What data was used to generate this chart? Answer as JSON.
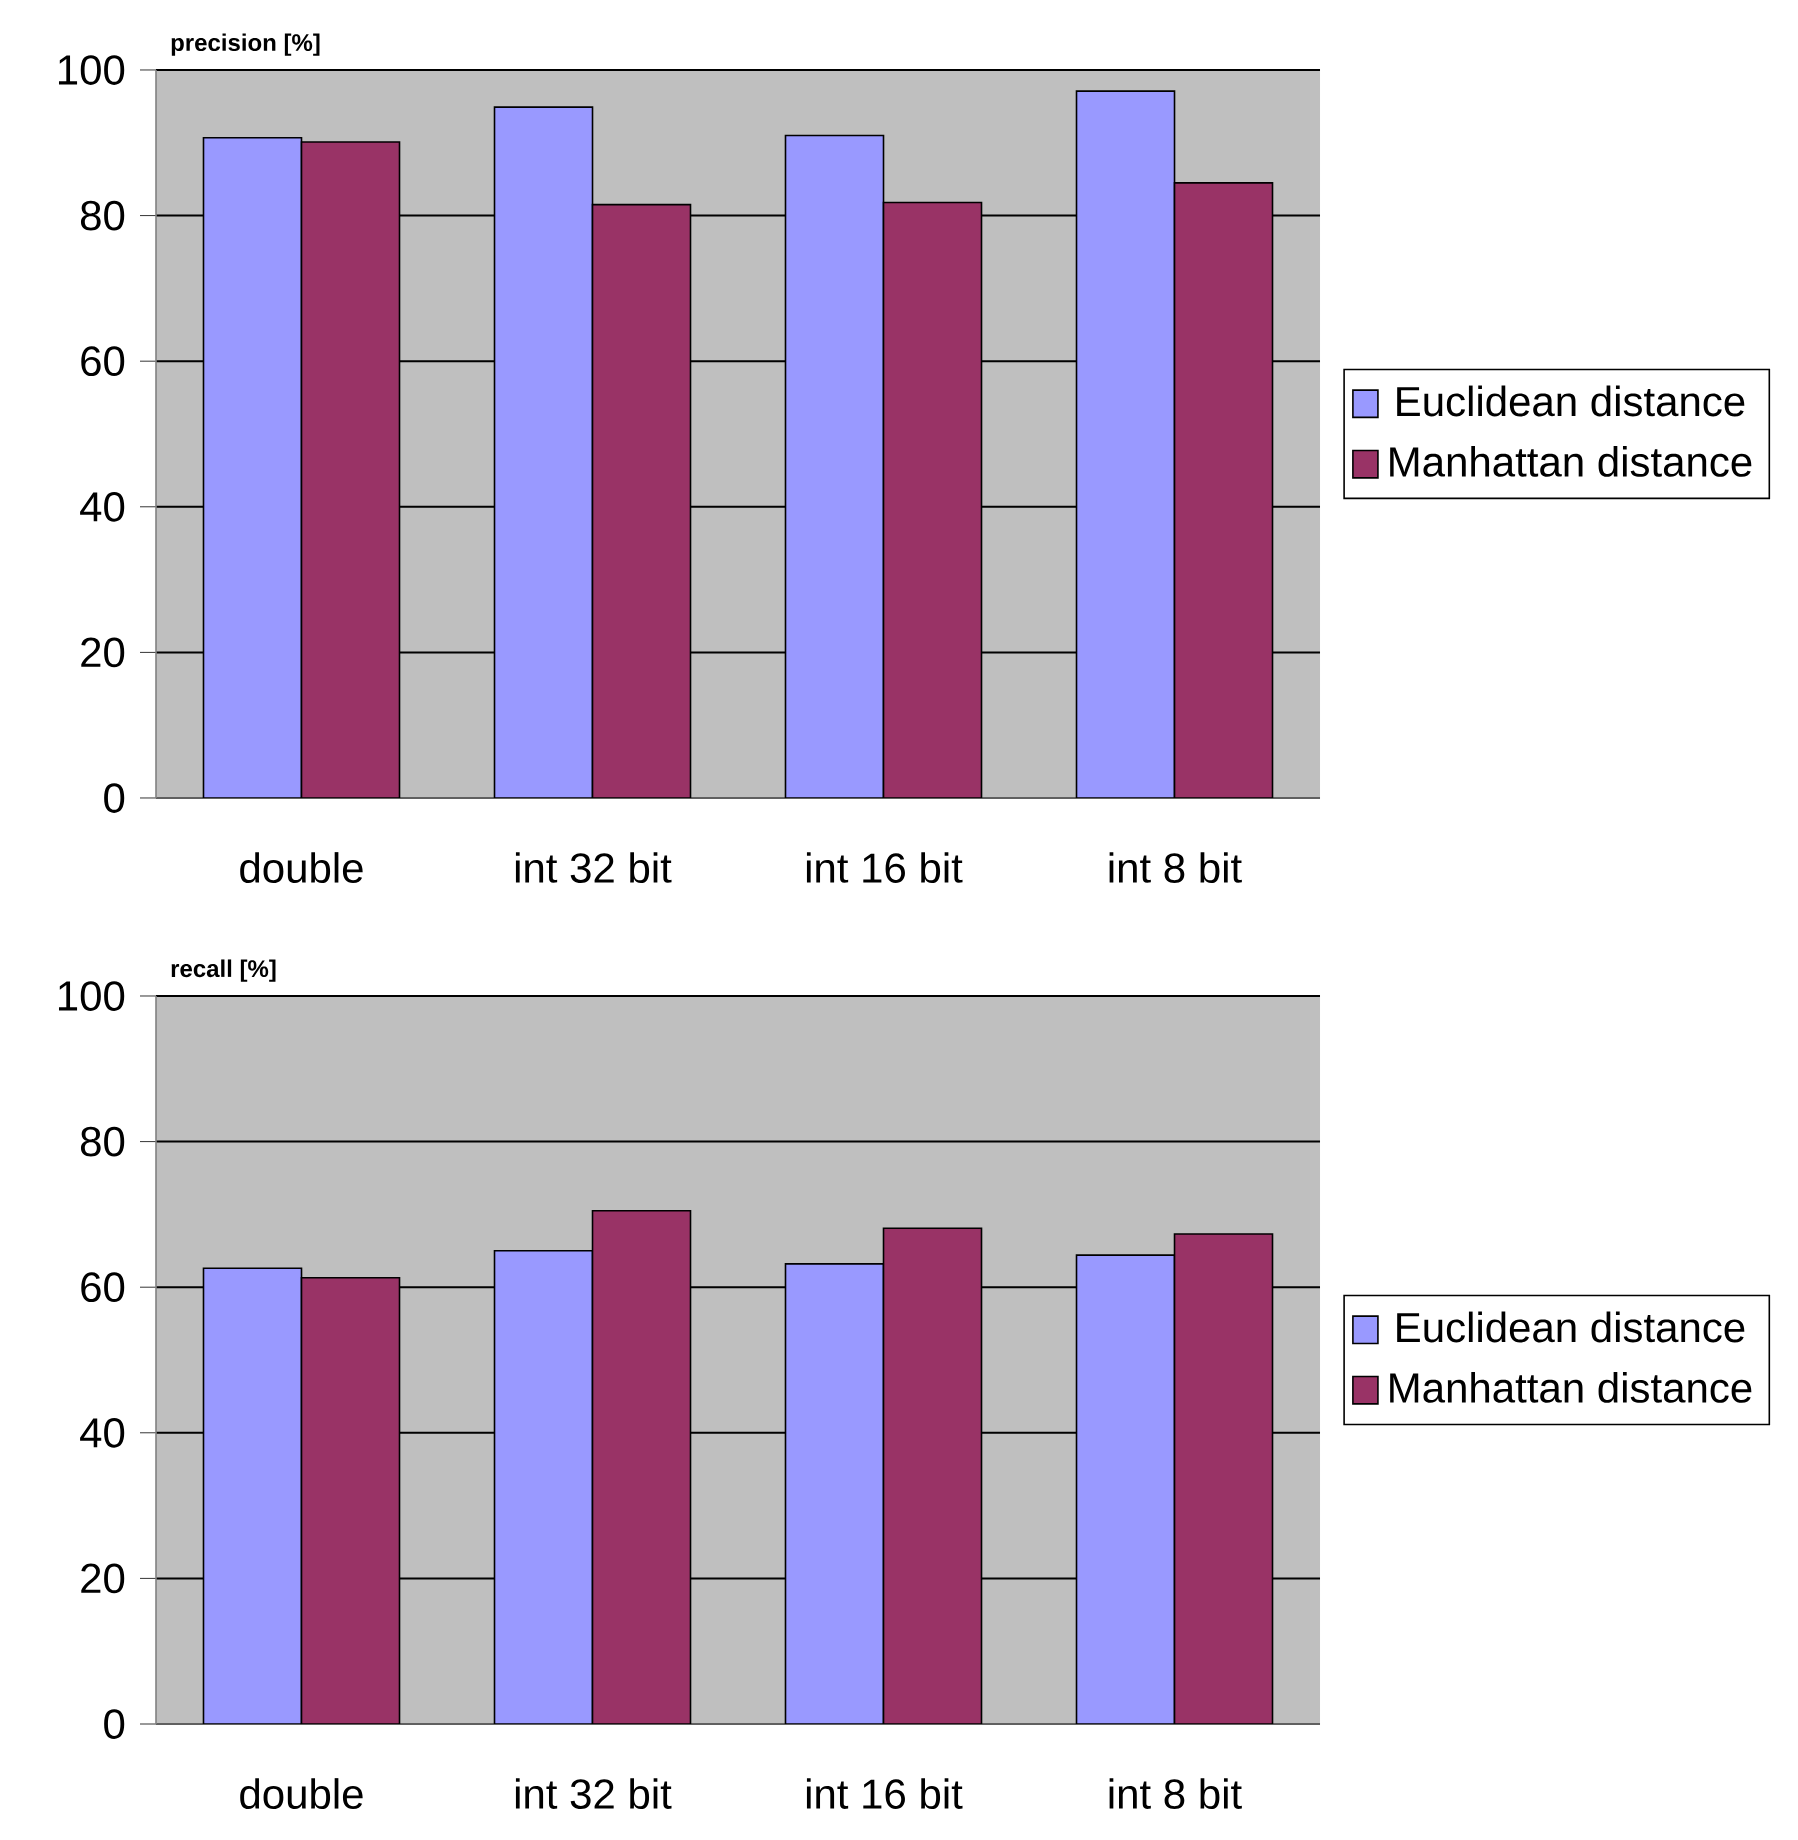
{
  "chart_data": [
    {
      "type": "bar",
      "ylabel": "precision [%]",
      "categories": [
        "double",
        "int 32 bit",
        "int 16 bit",
        "int 8 bit"
      ],
      "series": [
        {
          "name": "Euclidean distance",
          "color": "#9999ff",
          "values": [
            90.7,
            94.9,
            91.0,
            97.1
          ]
        },
        {
          "name": "Manhattan distance",
          "color": "#993366",
          "values": [
            90.1,
            81.5,
            81.8,
            84.5
          ]
        }
      ],
      "ylim": [
        0,
        100
      ],
      "yticks": [
        0,
        20,
        40,
        60,
        80,
        100
      ],
      "grid": "y",
      "legend": "right"
    },
    {
      "type": "bar",
      "ylabel": "recall [%]",
      "categories": [
        "double",
        "int 32 bit",
        "int 16 bit",
        "int 8 bit"
      ],
      "series": [
        {
          "name": "Euclidean distance",
          "color": "#9999ff",
          "values": [
            62.6,
            65.0,
            63.2,
            64.4
          ]
        },
        {
          "name": "Manhattan distance",
          "color": "#993366",
          "values": [
            61.3,
            70.5,
            68.1,
            67.3
          ]
        }
      ],
      "ylim": [
        0,
        100
      ],
      "yticks": [
        0,
        20,
        40,
        60,
        80,
        100
      ],
      "grid": "y",
      "legend": "right"
    }
  ]
}
